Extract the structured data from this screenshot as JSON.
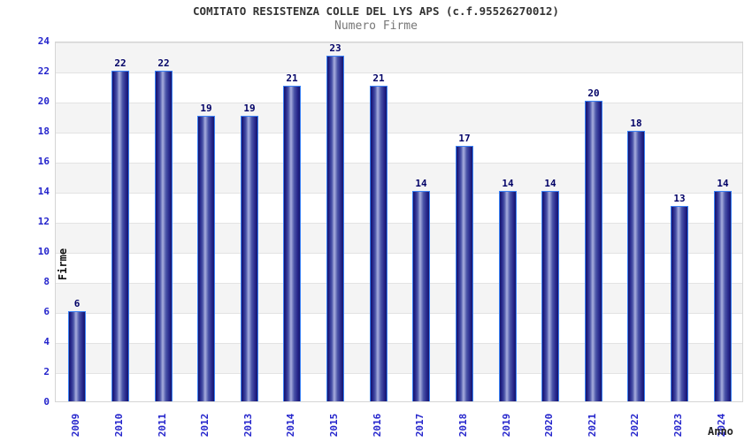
{
  "header": {
    "title": "COMITATO RESISTENZA COLLE DEL LYS APS (c.f.95526270012)",
    "subtitle": "Numero Firme"
  },
  "chart_data": {
    "type": "bar",
    "title": "COMITATO RESISTENZA COLLE DEL LYS APS (c.f.95526270012)",
    "subtitle": "Numero Firme",
    "categories": [
      "2009",
      "2010",
      "2011",
      "2012",
      "2013",
      "2014",
      "2015",
      "2016",
      "2017",
      "2018",
      "2019",
      "2020",
      "2021",
      "2022",
      "2023",
      "2024"
    ],
    "values": [
      6,
      22,
      22,
      19,
      19,
      21,
      23,
      21,
      14,
      17,
      14,
      14,
      20,
      18,
      13,
      14
    ],
    "xlabel": "Anno",
    "ylabel": "Firme",
    "ylim": [
      0,
      24
    ],
    "ytick_step": 2,
    "grid": "horizontal-bands",
    "legend": "none",
    "colors": {
      "tick_label": "#2424cc",
      "value_label": "#000066",
      "bar_border": "#3b82f6",
      "bar_dark": "#14146b",
      "bar_mid": "#4a54a8",
      "bar_light": "#a8aede",
      "band_gray": "#f4f4f4",
      "title": "#333333",
      "subtitle": "#777777"
    }
  }
}
